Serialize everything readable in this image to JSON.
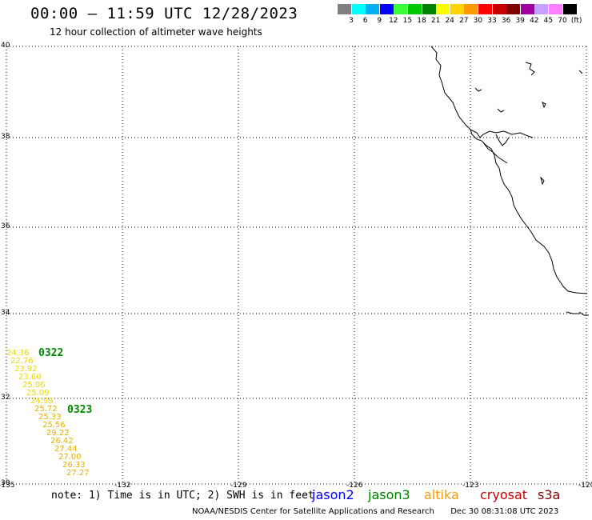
{
  "header": {
    "title": "00:00 – 11:59 UTC 12/28/2023",
    "subtitle": "12 hour collection of altimeter wave heights"
  },
  "colorbar": {
    "colors": [
      "#7f7f7f",
      "#00ffff",
      "#00b0f0",
      "#0000ff",
      "#3cff3c",
      "#00c800",
      "#008000",
      "#ffff00",
      "#ffd200",
      "#ff9900",
      "#ff0000",
      "#c80000",
      "#800000",
      "#a000a0",
      "#c8a0ff",
      "#ff80ff",
      "#000000"
    ],
    "labels": [
      "3",
      "6",
      "9",
      "12",
      "15",
      "18",
      "21",
      "24",
      "27",
      "30",
      "33",
      "36",
      "39",
      "42",
      "45",
      "70",
      "(ft)"
    ]
  },
  "map": {
    "lat_labels": [
      "40",
      "38",
      "36",
      "34",
      "32",
      "30"
    ],
    "lon_labels": [
      "-135",
      "-132",
      "-129",
      "-126",
      "-123",
      "-120"
    ]
  },
  "track": {
    "time_tags": [
      "0322",
      "0323"
    ],
    "values": [
      "24.36",
      "22.76",
      "23.92",
      "23.60",
      "25.06",
      "25.09",
      "24.99",
      "25.72",
      "25.33",
      "25.56",
      "29.22",
      "26.42",
      "27.44",
      "27.00",
      "26.33",
      "27.27"
    ]
  },
  "legend": {
    "note": "note: 1) Time is in UTC; 2) SWH is in feet",
    "satellites": [
      {
        "name": "jason2",
        "color": "#0000ff"
      },
      {
        "name": "jason3",
        "color": "#008000"
      },
      {
        "name": "altika",
        "color": "#ff9900"
      },
      {
        "name": "cryosat",
        "color": "#c80000"
      },
      {
        "name": "s3a",
        "color": "#800000"
      }
    ]
  },
  "footer": {
    "credit": "NOAA/NESDIS Center for Satellite Applications and Research",
    "timestamp": "Dec 30 08:31:08 UTC 2023"
  }
}
